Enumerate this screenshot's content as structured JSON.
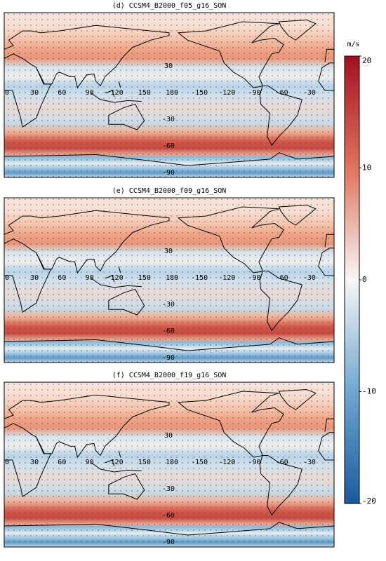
{
  "panels": [
    {
      "title": "(d) CCSM4_B2000_f05_g16_SON"
    },
    {
      "title": "(e) CCSM4_B2000_f09_g16_SON"
    },
    {
      "title": "(f) CCSM4_B2000_f19_g16_SON"
    }
  ],
  "lat_labels": [
    30,
    -30,
    -60,
    -90
  ],
  "lon_labels": [
    0,
    30,
    60,
    90,
    120,
    150,
    180,
    -150,
    -120,
    -90,
    -60,
    -30
  ],
  "colorbar": {
    "label": "m/s",
    "range": [
      -20,
      20
    ],
    "ticks": [
      20,
      10,
      0,
      -10,
      -20
    ]
  }
}
